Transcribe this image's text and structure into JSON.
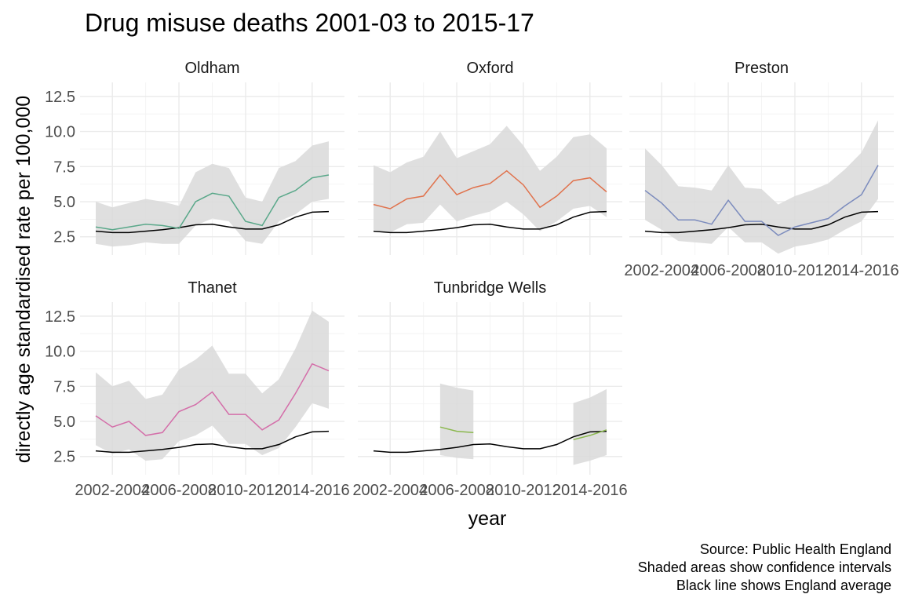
{
  "chart_data": {
    "type": "line",
    "title": "Drug misuse deaths 2001-03 to 2015-17",
    "xlabel": "year",
    "ylabel": "directly age standardised rate per 100,000",
    "captions": [
      "Source: Public Health England",
      "Shaded areas show confidence intervals",
      "Black line shows England average"
    ],
    "periods": [
      "2001-2003",
      "2002-2004",
      "2003-2005",
      "2004-2006",
      "2005-2007",
      "2006-2008",
      "2007-2009",
      "2008-2010",
      "2009-2011",
      "2010-2012",
      "2011-2013",
      "2012-2014",
      "2013-2015",
      "2014-2016",
      "2015-2017"
    ],
    "x_tick_labels": [
      "2002-2004",
      "2006-2008",
      "2010-2012",
      "2014-2016"
    ],
    "y_ticks": [
      2.5,
      5.0,
      7.5,
      10.0,
      12.5
    ],
    "y_tick_labels": [
      "2.5",
      "5.0",
      "7.5",
      "10.0",
      "12.5"
    ],
    "ylim": [
      1.2,
      13.5
    ],
    "england": [
      2.9,
      2.8,
      2.8,
      2.9,
      3.0,
      3.15,
      3.35,
      3.4,
      3.2,
      3.05,
      3.05,
      3.35,
      3.9,
      4.25,
      4.3
    ],
    "panels": [
      {
        "name": "Oldham",
        "color": "#5aa88a",
        "values": [
          3.2,
          3.0,
          3.2,
          3.4,
          3.3,
          3.1,
          5.0,
          5.6,
          5.4,
          3.6,
          3.3,
          5.3,
          5.8,
          6.7,
          6.9
        ],
        "lower": [
          2.0,
          1.8,
          1.9,
          2.1,
          2.0,
          2.0,
          3.3,
          3.8,
          3.6,
          2.2,
          2.0,
          3.6,
          4.1,
          5.0,
          5.2
        ],
        "upper": [
          5.0,
          4.6,
          4.9,
          5.2,
          5.0,
          4.7,
          7.1,
          7.7,
          7.4,
          5.3,
          5.0,
          7.4,
          7.9,
          9.0,
          9.3
        ]
      },
      {
        "name": "Oxford",
        "color": "#e0724c",
        "values": [
          4.8,
          4.5,
          5.2,
          5.4,
          6.9,
          5.5,
          6.0,
          6.3,
          7.2,
          6.2,
          4.6,
          5.4,
          6.5,
          6.7,
          5.7
        ],
        "lower": [
          3.0,
          2.8,
          3.4,
          3.5,
          4.8,
          3.6,
          4.0,
          4.3,
          5.0,
          4.1,
          2.9,
          3.6,
          4.5,
          4.7,
          3.9
        ],
        "upper": [
          7.6,
          7.1,
          7.8,
          8.2,
          10.0,
          8.1,
          8.6,
          9.1,
          10.4,
          9.0,
          7.2,
          8.2,
          9.6,
          9.8,
          8.8
        ]
      },
      {
        "name": "Preston",
        "color": "#7b8bbd",
        "values": [
          5.8,
          4.9,
          3.7,
          3.7,
          3.4,
          5.1,
          3.6,
          3.6,
          2.6,
          3.2,
          3.5,
          3.8,
          4.7,
          5.5,
          7.6
        ],
        "lower": [
          3.7,
          3.0,
          2.2,
          2.1,
          2.0,
          3.2,
          2.1,
          2.1,
          1.3,
          1.8,
          2.0,
          2.3,
          3.0,
          3.6,
          5.2
        ],
        "upper": [
          8.8,
          7.6,
          6.1,
          6.0,
          5.8,
          7.6,
          6.0,
          5.9,
          4.8,
          5.4,
          5.8,
          6.3,
          7.3,
          8.5,
          10.8
        ]
      },
      {
        "name": "Thanet",
        "color": "#d46ea9",
        "values": [
          5.4,
          4.6,
          5.0,
          4.0,
          4.2,
          5.7,
          6.2,
          7.1,
          5.5,
          5.5,
          4.4,
          5.1,
          7.0,
          9.1,
          8.6
        ],
        "lower": [
          3.3,
          2.7,
          3.0,
          2.2,
          2.3,
          3.6,
          4.0,
          4.7,
          3.4,
          3.4,
          2.6,
          3.1,
          4.6,
          6.3,
          5.9
        ],
        "upper": [
          8.5,
          7.5,
          7.9,
          6.6,
          6.9,
          8.7,
          9.4,
          10.4,
          8.4,
          8.4,
          7.0,
          8.0,
          10.2,
          12.9,
          12.1
        ]
      },
      {
        "name": "Tunbridge Wells",
        "color": "#8bb84e",
        "values": [
          null,
          null,
          null,
          null,
          4.6,
          4.3,
          4.2,
          null,
          null,
          null,
          null,
          null,
          3.7,
          4.0,
          4.4
        ],
        "lower": [
          null,
          null,
          null,
          null,
          2.6,
          2.4,
          2.3,
          null,
          null,
          null,
          null,
          null,
          1.9,
          2.2,
          2.6
        ],
        "upper": [
          null,
          null,
          null,
          null,
          7.7,
          7.4,
          7.2,
          null,
          null,
          null,
          null,
          null,
          6.3,
          6.7,
          7.3
        ]
      }
    ]
  }
}
